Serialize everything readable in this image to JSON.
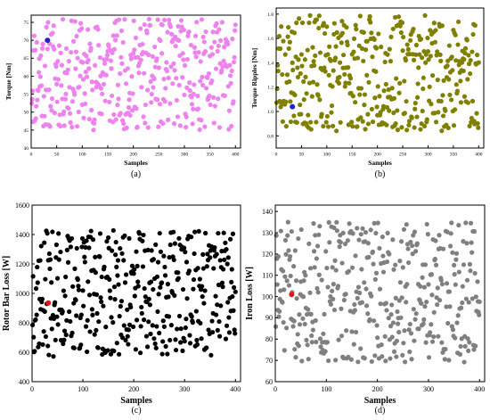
{
  "chart_data": [
    {
      "type": "scatter",
      "panel": "(a)",
      "xlabel": "Samples",
      "ylabel": "Torque [Nm]",
      "xlim": [
        0,
        410
      ],
      "ylim": [
        40,
        77
      ],
      "xticks": [
        0,
        50,
        100,
        150,
        200,
        250,
        300,
        350,
        400
      ],
      "yticks": [
        40,
        45,
        50,
        55,
        60,
        65,
        70,
        75
      ],
      "colors": {
        "points": "#ee82ee",
        "highlight": "#1f1fd6"
      },
      "highlight": {
        "x": 32,
        "y": 70
      },
      "seed": 11,
      "n": 400,
      "series": [
        {
          "values": [
            45,
            76
          ]
        }
      ]
    },
    {
      "type": "scatter",
      "panel": "(b)",
      "xlabel": "Samples",
      "ylabel": "Torque Ripples [Nm]",
      "xlim": [
        0,
        410
      ],
      "ylim": [
        0.7,
        1.85
      ],
      "xticks": [
        0,
        50,
        100,
        150,
        200,
        250,
        300,
        350,
        400
      ],
      "yticks": [
        0.8,
        1.0,
        1.2,
        1.4,
        1.6,
        1.8
      ],
      "colors": {
        "points": "#808000",
        "highlight": "#1f1fd6"
      },
      "highlight": {
        "x": 32,
        "y": 1.04
      },
      "seed": 23,
      "n": 400,
      "series": [
        {
          "values": [
            0.84,
            1.79
          ]
        }
      ]
    },
    {
      "type": "scatter",
      "panel": "(c)",
      "xlabel": "Samples",
      "ylabel": "Rotor Bar Loss [W]",
      "xlim": [
        0,
        410
      ],
      "ylim": [
        400,
        1600
      ],
      "xticks": [
        0,
        100,
        200,
        300,
        400
      ],
      "yticks": [
        400,
        600,
        800,
        1000,
        1200,
        1400,
        1600
      ],
      "colors": {
        "points": "#000000",
        "highlight": "#e8141c"
      },
      "highlight": {
        "x": 32,
        "y": 935
      },
      "seed": 37,
      "n": 400,
      "series": [
        {
          "values": [
            570,
            1430
          ]
        }
      ]
    },
    {
      "type": "scatter",
      "panel": "(d)",
      "xlabel": "Samples",
      "ylabel": "Iron Loss [W]",
      "xlim": [
        0,
        410
      ],
      "ylim": [
        60,
        143
      ],
      "xticks": [
        0,
        100,
        200,
        300,
        400
      ],
      "yticks": [
        60,
        70,
        80,
        90,
        100,
        110,
        120,
        130,
        140
      ],
      "colors": {
        "points": "#808080",
        "highlight": "#e8141c"
      },
      "highlight": {
        "x": 32,
        "y": 101
      },
      "seed": 51,
      "n": 400,
      "series": [
        {
          "values": [
            69,
            135
          ]
        }
      ]
    }
  ]
}
